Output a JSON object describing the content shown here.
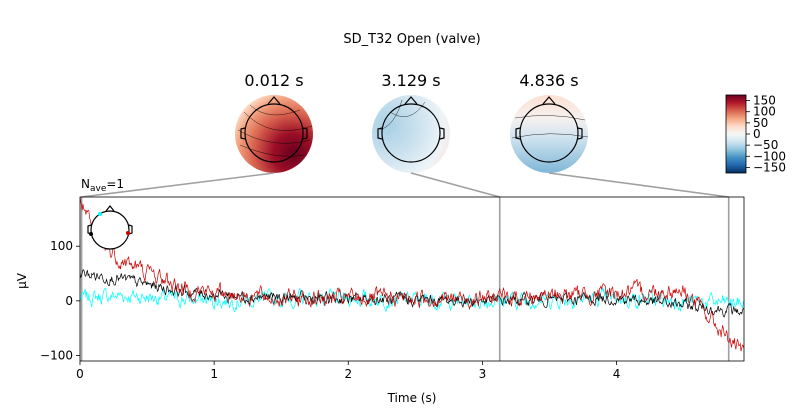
{
  "figure": {
    "suptitle": "SD_T32 Open (valve)",
    "nave_label": "N",
    "nave_sub": "ave",
    "nave_value": "=1"
  },
  "colorbar": {
    "ticks": [
      "150",
      "100",
      "50",
      "0",
      "−50",
      "−100",
      "−150"
    ],
    "tick_values": [
      150,
      100,
      50,
      0,
      -50,
      -100,
      -150
    ],
    "vmin": -175,
    "vmax": 175,
    "colormap": "RdBu_r",
    "colors": [
      "#053061",
      "#2166ac",
      "#4393c3",
      "#92c5de",
      "#d1e5f0",
      "#f7f7f7",
      "#fddbc7",
      "#f4a582",
      "#d6604d",
      "#b2182b",
      "#67001f"
    ]
  },
  "topomaps": [
    {
      "title": "0.012 s",
      "time": 0.012,
      "pattern": "strong-positive-lower-right"
    },
    {
      "title": "3.129 s",
      "time": 3.129,
      "pattern": "weak-negative-left"
    },
    {
      "title": "4.836 s",
      "time": 4.836,
      "pattern": "negative-lower"
    }
  ],
  "chart_data": {
    "type": "line",
    "xlabel": "Time (s)",
    "ylabel": "µV",
    "xlim": [
      0,
      4.95
    ],
    "ylim": [
      -110,
      190
    ],
    "xticks": [
      0,
      1,
      2,
      3,
      4
    ],
    "xtick_labels": [
      "0",
      "1",
      "2",
      "3",
      "4"
    ],
    "yticks": [
      -100,
      0,
      100
    ],
    "ytick_labels": [
      "−100",
      "0",
      "100"
    ],
    "grid": false,
    "legend": "sensor-inset-top-left",
    "vlines": [
      0.012,
      3.129,
      4.836
    ],
    "series": [
      {
        "color": "#00ffff",
        "key_points": [
          [
            0,
            5
          ],
          [
            0.3,
            10
          ],
          [
            1,
            0
          ],
          [
            2,
            5
          ],
          [
            3,
            0
          ],
          [
            4,
            5
          ],
          [
            4.95,
            -5
          ]
        ]
      },
      {
        "color": "#000000",
        "key_points": [
          [
            0,
            50
          ],
          [
            0.3,
            40
          ],
          [
            0.8,
            15
          ],
          [
            1.5,
            5
          ],
          [
            3,
            0
          ],
          [
            4,
            5
          ],
          [
            4.95,
            -20
          ]
        ]
      },
      {
        "color": "#cc0000",
        "key_points": [
          [
            0,
            190
          ],
          [
            0.1,
            120
          ],
          [
            0.3,
            75
          ],
          [
            0.8,
            20
          ],
          [
            1.5,
            5
          ],
          [
            3,
            5
          ],
          [
            4.5,
            20
          ],
          [
            4.95,
            -100
          ]
        ]
      }
    ]
  }
}
